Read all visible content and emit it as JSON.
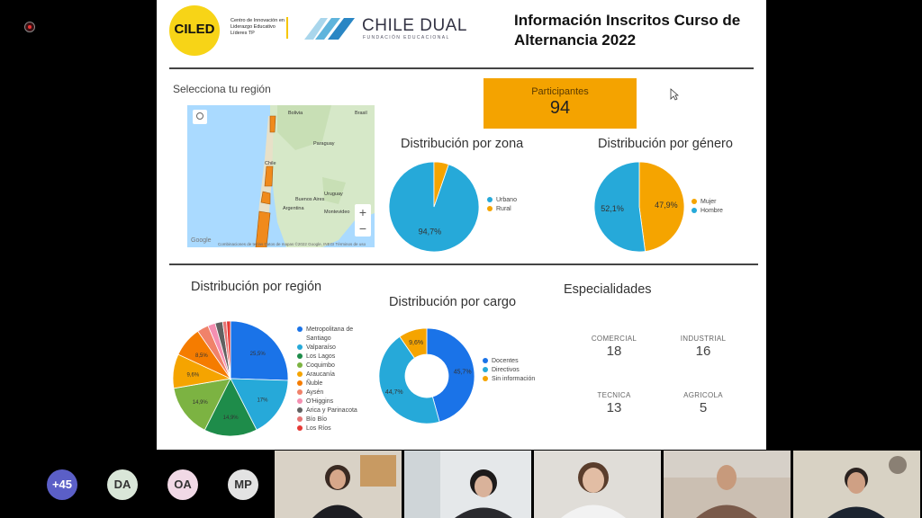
{
  "slide": {
    "logo_text": "CILED",
    "logo_subtext": "Centro de Innovación en Liderazgo Educativo Líderes TP",
    "partner_brand": "CHILE DUAL",
    "partner_sub": "FUNDACIÓN EDUCACIONAL",
    "title": "Información Inscritos Curso de Alternancia 2022",
    "region_selector_label": "Selecciona tu región",
    "participants": {
      "label": "Participantes",
      "value": "94"
    },
    "map": {
      "labels": [
        "Bolivia",
        "Brasil",
        "Paraguay",
        "Chile",
        "Argentina",
        "Uruguay",
        "Buenos Aires",
        "Montevideo"
      ],
      "attribution": "Combinaciones de teclas   Datos de mapas ©2022 Google, INEGI   Términos de uso",
      "google": "Google",
      "zoom_in": "+",
      "zoom_out": "−"
    },
    "specialties": {
      "title": "Especialidades",
      "items": [
        {
          "name": "COMERCIAL",
          "value": "18"
        },
        {
          "name": "INDUSTRIAL",
          "value": "16"
        },
        {
          "name": "TECNICA",
          "value": "13"
        },
        {
          "name": "AGRICOLA",
          "value": "5"
        }
      ]
    }
  },
  "chart_data": [
    {
      "type": "pie",
      "title": "Distribución por zona",
      "categories": [
        "Urbano",
        "Rural"
      ],
      "values": [
        94.7,
        5.3
      ],
      "value_labels": [
        "94,7%",
        ""
      ],
      "colors": [
        "#26a9d9",
        "#f5a400"
      ]
    },
    {
      "type": "pie",
      "title": "Distribución por género",
      "categories": [
        "Mujer",
        "Hombre"
      ],
      "values": [
        47.9,
        52.1
      ],
      "value_labels": [
        "47,9%",
        "52,1%"
      ],
      "colors": [
        "#f5a400",
        "#26a9d9"
      ]
    },
    {
      "type": "pie",
      "title": "Distribución por región",
      "categories": [
        "Metropolitana de Santiago",
        "Valparaíso",
        "Los Lagos",
        "Coquimbo",
        "Araucanía",
        "Ñuble",
        "Aysén",
        "O'Higgins",
        "Arica y Parinacota",
        "Bío Bío",
        "Los Ríos"
      ],
      "values": [
        25.5,
        17,
        14.9,
        14.9,
        9.6,
        8.5,
        3.2,
        2.1,
        2.1,
        1.1,
        1.1
      ],
      "value_labels": [
        "25,5%",
        "17%",
        "14,9%",
        "14,9%",
        "9,6%",
        "8,5%",
        "",
        "",
        "",
        "",
        ""
      ],
      "colors": [
        "#1a73e8",
        "#26a9d9",
        "#1e8c4a",
        "#7cb342",
        "#f5a400",
        "#f57c00",
        "#f0826a",
        "#f48fb1",
        "#616161",
        "#e57373",
        "#e53935"
      ]
    },
    {
      "type": "pie",
      "title": "Distribución por cargo",
      "donut": true,
      "categories": [
        "Docentes",
        "Directivos",
        "Sin información"
      ],
      "values": [
        45.7,
        44.7,
        9.6
      ],
      "value_labels": [
        "45,7%",
        "44,7%",
        "9,6%"
      ],
      "colors": [
        "#1a73e8",
        "#26a9d9",
        "#f5a400"
      ]
    }
  ],
  "participants_strip": {
    "avatars": [
      {
        "label": "+45",
        "color": "#5b5fc7",
        "text_color": "#ffffff"
      },
      {
        "label": "DA",
        "color": "#d9e6d8",
        "text_color": "#333333"
      },
      {
        "label": "OA",
        "color": "#f1d9e6",
        "text_color": "#333333"
      },
      {
        "label": "MP",
        "color": "#e3e3e3",
        "text_color": "#333333"
      }
    ]
  }
}
